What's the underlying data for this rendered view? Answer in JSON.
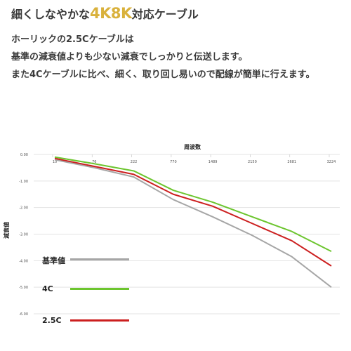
{
  "headline": {
    "prefix": "細くしなやかな",
    "accent": "4K8K",
    "suffix": "対応ケーブル"
  },
  "description": [
    "ホーリックの2.5Cケーブルは",
    "基準の減衰値よりも少ない減衰でしっかりと伝送します。",
    "また4Cケーブルに比べ、細く、取り回し易いので配線が簡単に行えます。"
  ],
  "colors": {
    "accent": "#d9b13c",
    "baseline": "#a6a6a6",
    "c4": "#6cc52e",
    "c25": "#cc1f1f",
    "grid": "#e3e3e3"
  },
  "chart_data": {
    "type": "line",
    "title": "",
    "xlabel": "周波数",
    "ylabel": "減衰値",
    "categories": [
      "10",
      "76",
      "222",
      "770",
      "1489",
      "2150",
      "2681",
      "3224"
    ],
    "ylim": [
      -6.0,
      0.0
    ],
    "yticks": [
      "0.00",
      "-1.00",
      "-2.00",
      "-3.00",
      "-4.00",
      "-5.00",
      "-6.00"
    ],
    "grid": true,
    "legend_position": "left-inside",
    "series": [
      {
        "name": "基準値",
        "values": [
          -0.2,
          -0.5,
          -0.85,
          -1.7,
          -2.35,
          -3.05,
          -3.85,
          -5.0
        ]
      },
      {
        "name": "4C",
        "values": [
          -0.1,
          -0.35,
          -0.62,
          -1.35,
          -1.8,
          -2.35,
          -2.9,
          -3.65
        ]
      },
      {
        "name": "2.5C",
        "values": [
          -0.15,
          -0.45,
          -0.75,
          -1.5,
          -1.95,
          -2.6,
          -3.25,
          -4.2
        ]
      }
    ]
  }
}
